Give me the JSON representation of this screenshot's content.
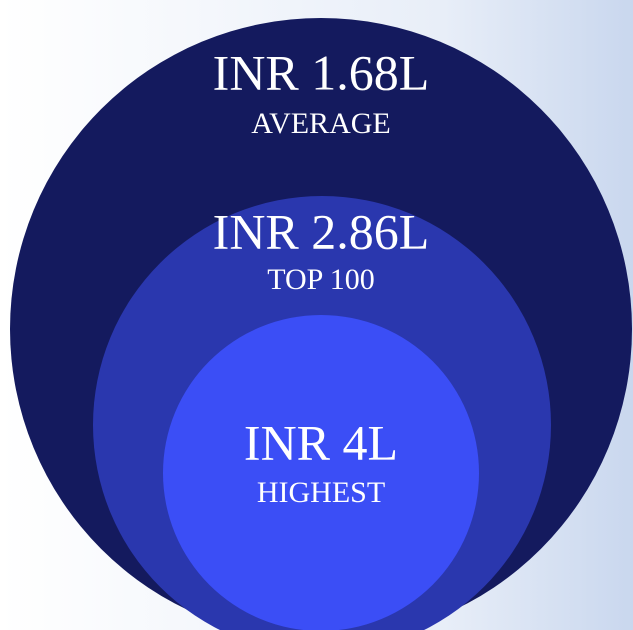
{
  "rings": [
    {
      "amount": "INR 1.68L",
      "label": "AVERAGE"
    },
    {
      "amount": "INR 2.86L",
      "label": "TOP 100"
    },
    {
      "amount": "INR 4L",
      "label": "HIGHEST"
    }
  ]
}
